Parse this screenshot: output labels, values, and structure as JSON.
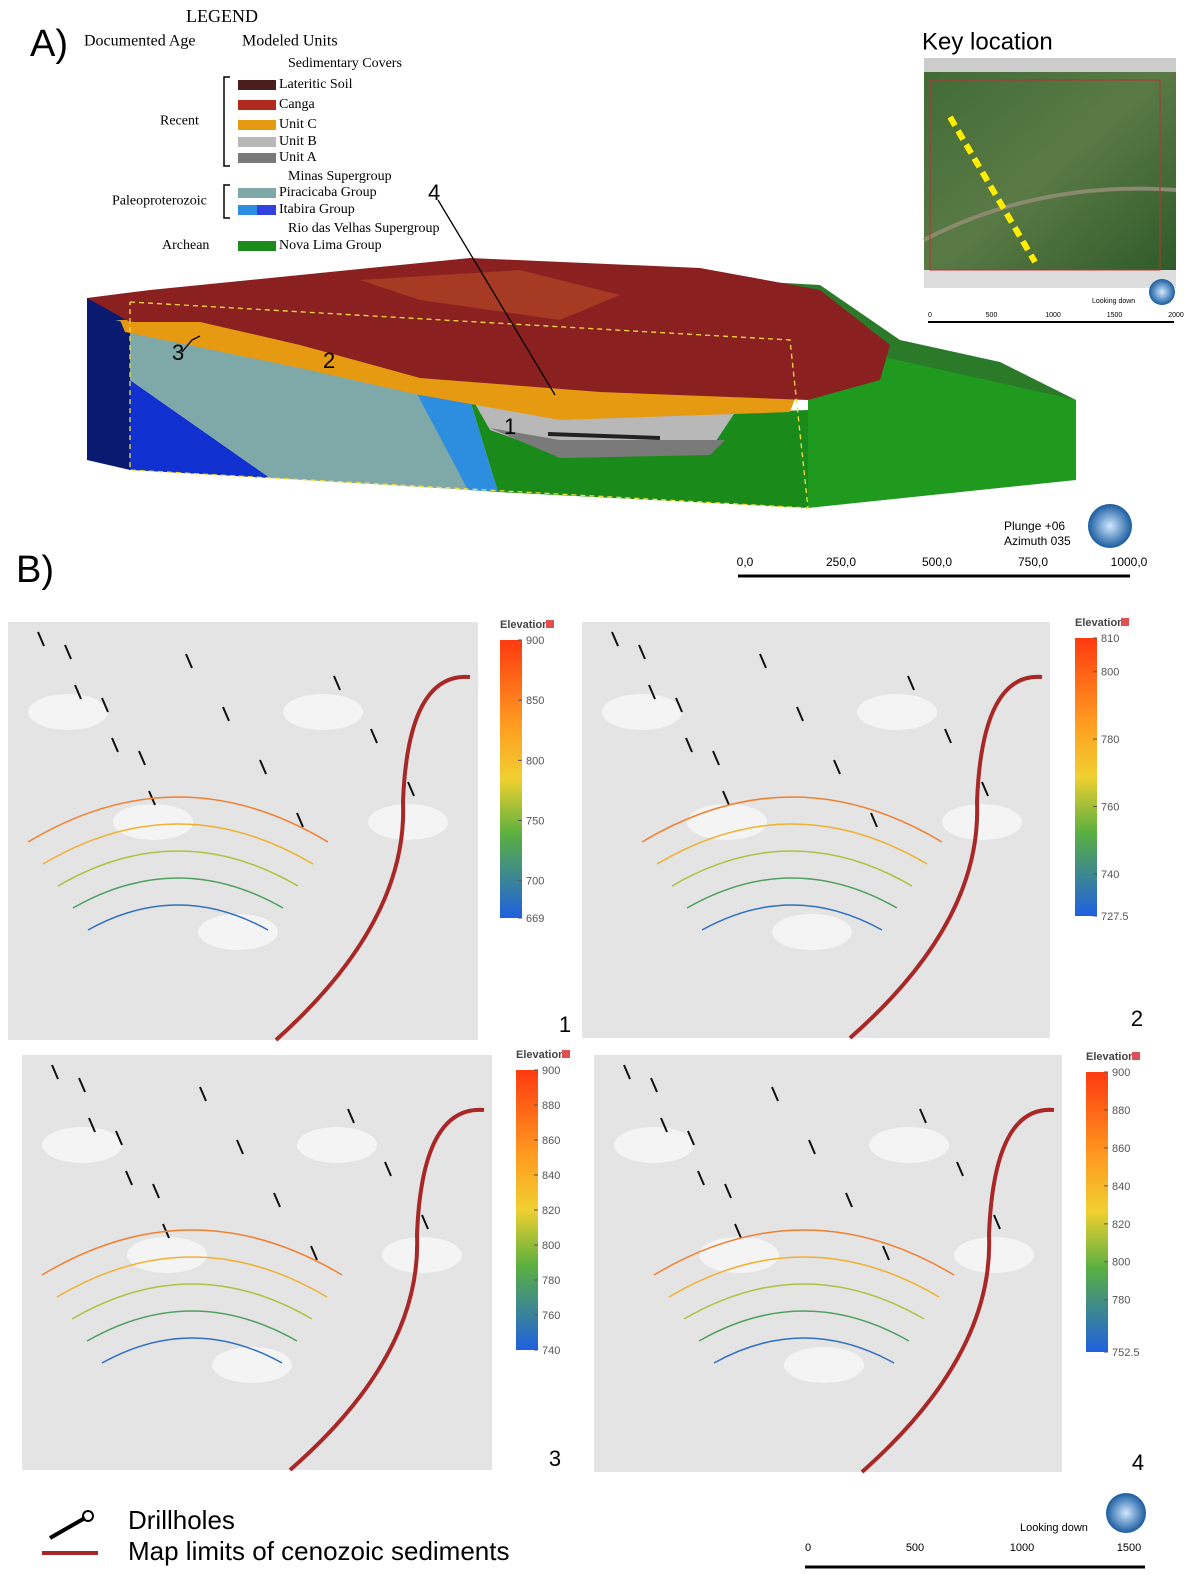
{
  "figure_label_a": "A)",
  "figure_label_b": "B)",
  "legend": {
    "title": "LEGEND",
    "age_header": "Documented Age",
    "units_header": "Modeled Units",
    "groups": [
      {
        "age": "Recent",
        "heading": "Sedimentary Covers",
        "units": [
          {
            "name": "Lateritic Soil",
            "color": "#4b1e1e"
          },
          {
            "name": "Canga",
            "color": "#b02a1e"
          },
          {
            "name": "Unit C",
            "color": "#e69a12"
          },
          {
            "name": "Unit B",
            "color": "#b8b8b8"
          },
          {
            "name": "Unit A",
            "color": "#7a7a7a"
          }
        ]
      },
      {
        "age": "Paleoproterozoic",
        "heading": "Minas Supergroup",
        "units": [
          {
            "name": "Piracicaba Group",
            "color": "#7fa8a8"
          },
          {
            "name": "Itabira Group",
            "color": "#2d8ee0"
          }
        ]
      },
      {
        "age": "Archean",
        "heading": "Rio das Velhas Supergroup",
        "units": [
          {
            "name": "Nova Lima Group",
            "color": "#1a8a1a"
          }
        ]
      }
    ]
  },
  "block_callouts": [
    "1",
    "2",
    "3",
    "4"
  ],
  "key_location": {
    "title": "Key location",
    "view": "Looking down",
    "scale": [
      "0",
      "500",
      "1000",
      "1500",
      "2000"
    ]
  },
  "block_view": {
    "plunge": "Plunge +06",
    "azimuth": "Azimuth 035",
    "scale": [
      "0,0",
      "250,0",
      "500,0",
      "750,0",
      "1000,0"
    ]
  },
  "panels": [
    {
      "number": "1",
      "colorbar_title": "Elevation",
      "ticks": [
        900,
        850,
        800,
        750,
        700,
        669
      ]
    },
    {
      "number": "2",
      "colorbar_title": "Elevation",
      "ticks": [
        810,
        800,
        780,
        760,
        740,
        727.5
      ]
    },
    {
      "number": "3",
      "colorbar_title": "Elevation",
      "ticks": [
        900,
        880,
        860,
        840,
        820,
        800,
        780,
        760,
        740
      ]
    },
    {
      "number": "4",
      "colorbar_title": "Elevation",
      "ticks": [
        900,
        880,
        860,
        840,
        820,
        800,
        780,
        752.5
      ]
    }
  ],
  "bottom_legend": {
    "items": [
      "Drillholes",
      "Map limits of cenozoic sediments"
    ],
    "view": "Looking down",
    "scale": [
      "0",
      "500",
      "1000",
      "1500"
    ]
  }
}
